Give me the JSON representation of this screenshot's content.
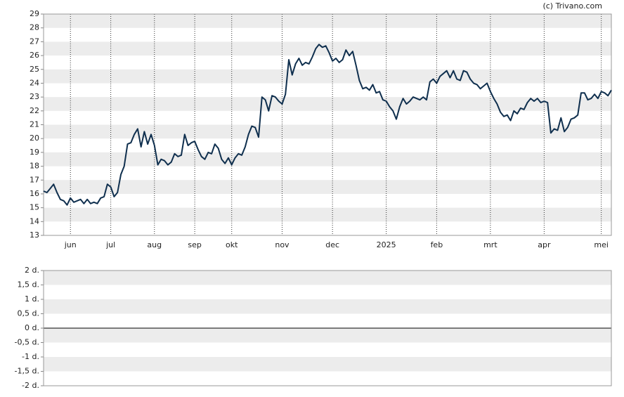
{
  "chart_data": [
    {
      "type": "line",
      "credit": "(c) Trivano.com",
      "color": "#0f2f4e",
      "values": [
        16.2,
        16.1,
        16.4,
        16.7,
        16.1,
        15.6,
        15.5,
        15.2,
        15.7,
        15.4,
        15.5,
        15.6,
        15.3,
        15.6,
        15.3,
        15.4,
        15.3,
        15.7,
        15.8,
        16.7,
        16.5,
        15.8,
        16.1,
        17.4,
        18.0,
        19.6,
        19.7,
        20.3,
        20.7,
        19.4,
        20.5,
        19.6,
        20.3,
        19.5,
        18.1,
        18.5,
        18.4,
        18.1,
        18.3,
        18.9,
        18.7,
        18.8,
        20.3,
        19.5,
        19.7,
        19.8,
        19.2,
        18.7,
        18.5,
        19.0,
        18.9,
        19.6,
        19.3,
        18.5,
        18.2,
        18.6,
        18.1,
        18.6,
        18.9,
        18.8,
        19.4,
        20.3,
        20.9,
        20.8,
        20.1,
        23.0,
        22.8,
        22.0,
        23.1,
        23.0,
        22.7,
        22.5,
        23.2,
        25.7,
        24.6,
        25.4,
        25.8,
        25.3,
        25.5,
        25.4,
        25.9,
        26.5,
        26.8,
        26.6,
        26.7,
        26.2,
        25.6,
        25.8,
        25.5,
        25.7,
        26.4,
        26.0,
        26.3,
        25.3,
        24.2,
        23.6,
        23.7,
        23.5,
        23.9,
        23.3,
        23.4,
        22.8,
        22.7,
        22.3,
        22.0,
        21.4,
        22.3,
        22.9,
        22.5,
        22.7,
        23.0,
        22.9,
        22.8,
        23.0,
        22.8,
        24.1,
        24.3,
        24.0,
        24.5,
        24.7,
        24.9,
        24.4,
        24.9,
        24.3,
        24.2,
        24.9,
        24.8,
        24.3,
        24.0,
        23.9,
        23.6,
        23.8,
        24.0,
        23.4,
        22.9,
        22.5,
        21.9,
        21.6,
        21.7,
        21.3,
        22.0,
        21.8,
        22.2,
        22.1,
        22.6,
        22.9,
        22.7,
        22.9,
        22.6,
        22.7,
        22.6,
        20.4,
        20.7,
        20.6,
        21.5,
        20.5,
        20.8,
        21.4,
        21.5,
        21.7,
        23.3,
        23.3,
        22.8,
        22.9,
        23.2,
        22.9,
        23.4,
        23.3,
        23.1,
        23.5
      ],
      "xlim": [
        0,
        169
      ],
      "xticks": [
        {
          "value": 8,
          "label": "jun"
        },
        {
          "value": 20,
          "label": "jul"
        },
        {
          "value": 33,
          "label": "aug"
        },
        {
          "value": 45,
          "label": "sep"
        },
        {
          "value": 56,
          "label": "okt"
        },
        {
          "value": 71,
          "label": "nov"
        },
        {
          "value": 86,
          "label": "dec"
        },
        {
          "value": 102,
          "label": "2025"
        },
        {
          "value": 117,
          "label": "feb"
        },
        {
          "value": 133,
          "label": "mrt"
        },
        {
          "value": 149,
          "label": "apr"
        },
        {
          "value": 166,
          "label": "mei"
        }
      ],
      "ylim": [
        13,
        29
      ],
      "yticks": [
        13,
        14,
        15,
        16,
        17,
        18,
        19,
        20,
        21,
        22,
        23,
        24,
        25,
        26,
        27,
        28,
        29
      ]
    },
    {
      "type": "line",
      "ylim": [
        -2,
        2
      ],
      "yticks": [
        {
          "value": 2,
          "label": "2 d."
        },
        {
          "value": 1.5,
          "label": "1,5 d."
        },
        {
          "value": 1,
          "label": "1 d."
        },
        {
          "value": 0.5,
          "label": "0,5 d."
        },
        {
          "value": 0,
          "label": "0 d."
        },
        {
          "value": -0.5,
          "label": "-0,5 d."
        },
        {
          "value": -1,
          "label": "-1 d."
        },
        {
          "value": -1.5,
          "label": "-1,5 d."
        },
        {
          "value": -2,
          "label": "-2 d."
        }
      ]
    }
  ]
}
